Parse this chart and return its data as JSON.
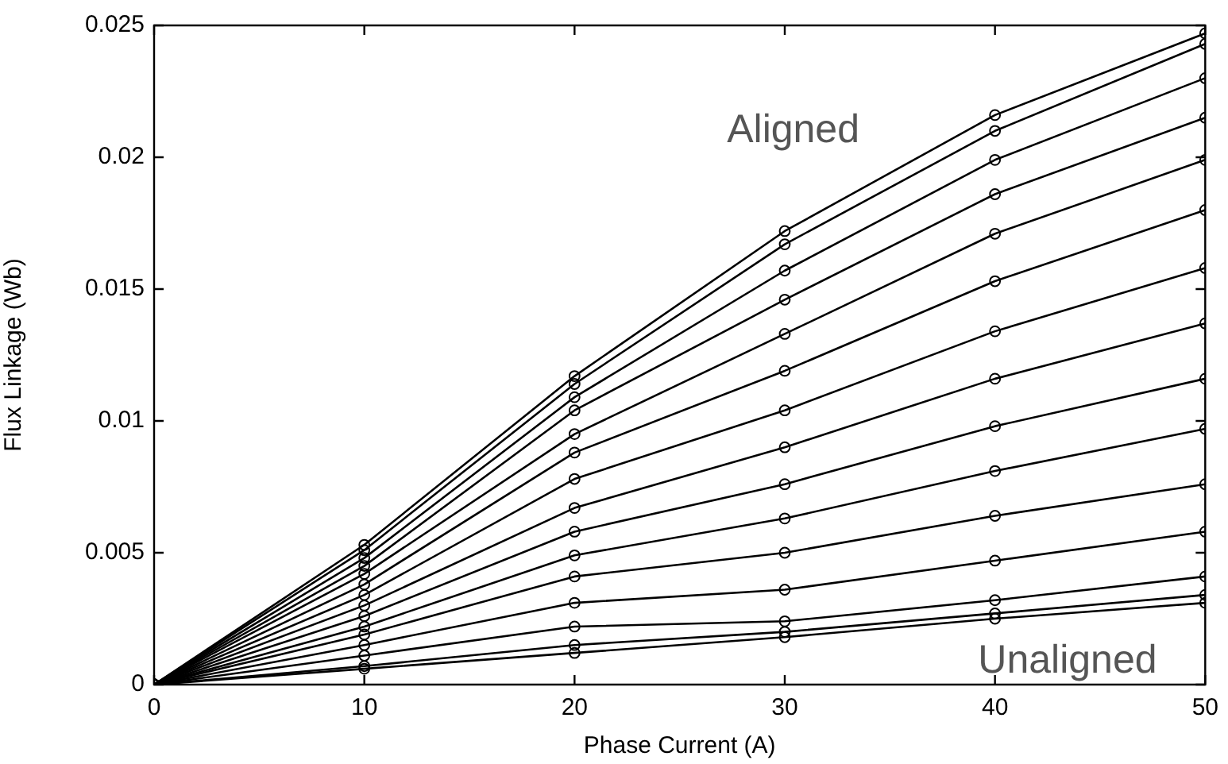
{
  "chart_data": {
    "type": "line",
    "xlabel": "Phase Current (A)",
    "ylabel": "Flux Linkage (Wb)",
    "x": [
      0,
      10,
      20,
      30,
      40,
      50
    ],
    "xlim": [
      0,
      50
    ],
    "xticks": [
      0,
      10,
      20,
      30,
      40,
      50
    ],
    "ylim": [
      0,
      0.025
    ],
    "yticks": [
      0,
      0.005,
      0.01,
      0.015,
      0.02,
      0.025
    ],
    "grid": false,
    "legend": false,
    "marker": "circle",
    "line_style": "solid",
    "series": [
      {
        "color": "#000000",
        "values": [
          0,
          0.0053,
          0.0117,
          0.0172,
          0.0216,
          0.0247
        ]
      },
      {
        "color": "#000000",
        "values": [
          0,
          0.0051,
          0.0114,
          0.0167,
          0.021,
          0.0243
        ]
      },
      {
        "color": "#000000",
        "values": [
          0,
          0.0048,
          0.0109,
          0.0157,
          0.0199,
          0.023
        ]
      },
      {
        "color": "#000000",
        "values": [
          0,
          0.0045,
          0.0104,
          0.0146,
          0.0186,
          0.0215
        ]
      },
      {
        "color": "#000000",
        "values": [
          0,
          0.0042,
          0.0095,
          0.0133,
          0.0171,
          0.0199
        ]
      },
      {
        "color": "#000000",
        "values": [
          0,
          0.0038,
          0.0088,
          0.0119,
          0.0153,
          0.018
        ]
      },
      {
        "color": "#000000",
        "values": [
          0,
          0.0034,
          0.0078,
          0.0104,
          0.0134,
          0.0158
        ]
      },
      {
        "color": "#000000",
        "values": [
          0,
          0.003,
          0.0067,
          0.009,
          0.0116,
          0.0137
        ]
      },
      {
        "color": "#000000",
        "values": [
          0,
          0.0026,
          0.0058,
          0.0076,
          0.0098,
          0.0116
        ]
      },
      {
        "color": "#000000",
        "values": [
          0,
          0.0022,
          0.0049,
          0.0063,
          0.0081,
          0.0097
        ]
      },
      {
        "color": "#000000",
        "values": [
          0,
          0.0019,
          0.0041,
          0.005,
          0.0064,
          0.0076
        ]
      },
      {
        "color": "#000000",
        "values": [
          0,
          0.0015,
          0.0031,
          0.0036,
          0.0047,
          0.0058
        ]
      },
      {
        "color": "#000000",
        "values": [
          0,
          0.0011,
          0.0022,
          0.0024,
          0.0032,
          0.0041
        ]
      },
      {
        "color": "#000000",
        "values": [
          0,
          0.0007,
          0.0015,
          0.002,
          0.0027,
          0.0034
        ]
      },
      {
        "color": "#000000",
        "values": [
          0,
          0.0006,
          0.0012,
          0.0018,
          0.0025,
          0.0031
        ]
      }
    ],
    "annotations": [
      "Aligned",
      "Unaligned"
    ]
  }
}
